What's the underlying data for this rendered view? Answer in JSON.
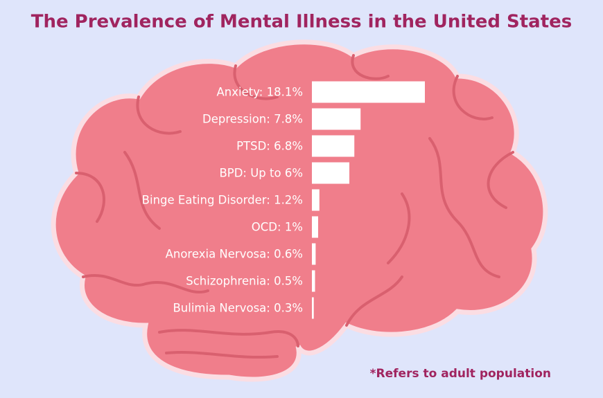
{
  "chart_data": {
    "type": "bar",
    "orientation": "horizontal",
    "title": "The Prevalence of Mental Illness in the United States",
    "categories": [
      "Anxiety: 18.1%",
      "Depression: 7.8%",
      "PTSD: 6.8%",
      "BPD: Up to 6%",
      "Binge Eating Disorder: 1.2%",
      "OCD: 1%",
      "Anorexia Nervosa: 0.6%",
      "Schizophrenia: 0.5%",
      "Bulimia Nervosa: 0.3%"
    ],
    "values": [
      18.1,
      7.8,
      6.8,
      6,
      1.2,
      1,
      0.6,
      0.5,
      0.3
    ],
    "color": "#ffffff",
    "footnote": "*Refers to adult population"
  }
}
